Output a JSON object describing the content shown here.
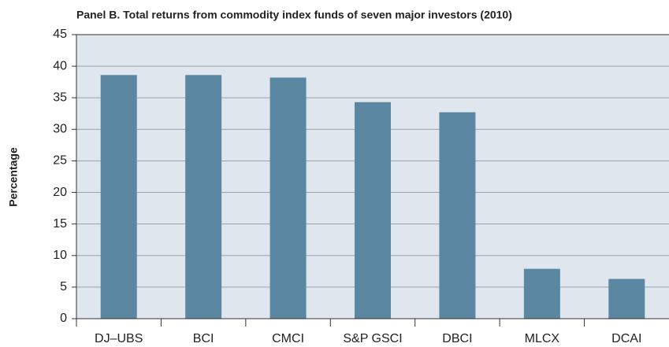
{
  "chart_data": {
    "type": "bar",
    "title": "Panel B.  Total returns from commodity index funds of seven major investors (2010)",
    "y_label": "Percentage",
    "categories": [
      "DJ–UBS",
      "BCI",
      "CMCI",
      "S&P GSCI",
      "DBCI",
      "MLCX",
      "DCAI"
    ],
    "values": [
      38.6,
      38.6,
      38.2,
      34.3,
      32.7,
      7.9,
      6.3
    ],
    "color": "#5b87a3",
    "ylim": [
      0,
      45
    ],
    "yticks": [
      0,
      5,
      10,
      15,
      20,
      25,
      30,
      35,
      40,
      45
    ],
    "grid": true
  }
}
